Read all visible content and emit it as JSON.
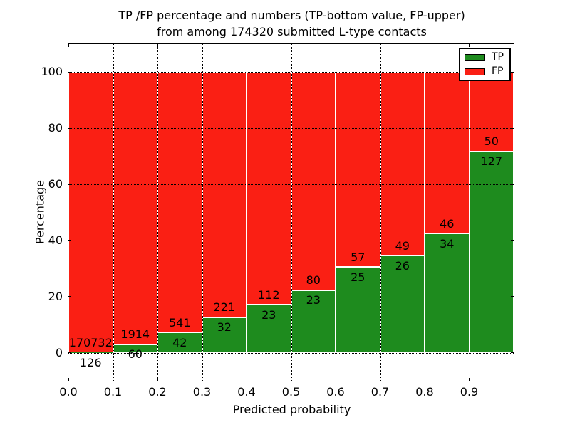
{
  "title": {
    "line1": "TP /FP percentage and numbers (TP-bottom value, FP-upper)",
    "line2": "from among 174320 submitted L-type contacts"
  },
  "chart_data": {
    "type": "bar",
    "stacked": true,
    "normalization": "percent-of-bin-total",
    "title": "TP /FP percentage and numbers (TP-bottom value, FP-upper) from among 174320 submitted L-type contacts",
    "xlabel": "Predicted probability",
    "ylabel": "Percentage",
    "xlim": [
      0.0,
      1.0
    ],
    "ylim": [
      -10,
      110
    ],
    "grid": true,
    "legend_position": "upper right",
    "bin_width": 0.1,
    "bin_starts": [
      0.0,
      0.1,
      0.2,
      0.3,
      0.4,
      0.5,
      0.6,
      0.7,
      0.8,
      0.9
    ],
    "xtick_labels": [
      "0.0",
      "0.1",
      "0.2",
      "0.3",
      "0.4",
      "0.5",
      "0.6",
      "0.7",
      "0.8",
      "0.9"
    ],
    "ytick_values": [
      0,
      20,
      40,
      60,
      80,
      100
    ],
    "series": [
      {
        "name": "TP",
        "color": "#1e8b1e",
        "values": [
          126,
          60,
          42,
          32,
          23,
          23,
          25,
          26,
          34,
          127
        ]
      },
      {
        "name": "FP",
        "color": "#fa1f14",
        "values": [
          170732,
          1914,
          541,
          221,
          112,
          80,
          57,
          49,
          46,
          50
        ]
      }
    ],
    "tp_percent_by_bin": [
      0.07,
      3.04,
      7.2,
      12.65,
      17.04,
      22.33,
      30.49,
      34.67,
      42.5,
      71.75
    ],
    "total_contacts": 174320
  },
  "colors": {
    "tp": "#1e8b1e",
    "fp": "#fa1f14",
    "grid": "#000000",
    "axis": "#000000",
    "background": "#ffffff"
  }
}
